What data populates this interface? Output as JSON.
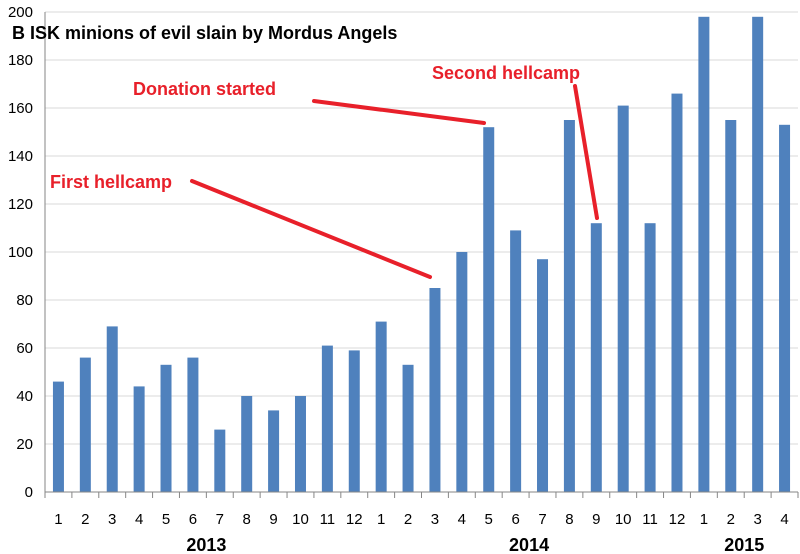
{
  "chart_data": {
    "type": "bar",
    "title": "B ISK minions of evil slain by Mordus Angels",
    "xlabel": "",
    "ylabel": "",
    "ylim": [
      0,
      200
    ],
    "yticks": [
      0,
      20,
      40,
      60,
      80,
      100,
      120,
      140,
      160,
      180,
      200
    ],
    "grid": true,
    "categories": [
      "1",
      "2",
      "3",
      "4",
      "5",
      "6",
      "7",
      "8",
      "9",
      "10",
      "11",
      "12",
      "1",
      "2",
      "3",
      "4",
      "5",
      "6",
      "7",
      "8",
      "9",
      "10",
      "11",
      "12",
      "1",
      "2",
      "3",
      "4"
    ],
    "years": [
      {
        "label": "2013",
        "first_index": 0,
        "last_index": 11
      },
      {
        "label": "2014",
        "first_index": 12,
        "last_index": 23
      },
      {
        "label": "2015",
        "first_index": 24,
        "last_index": 27
      }
    ],
    "values": [
      46,
      56,
      69,
      44,
      53,
      56,
      26,
      40,
      34,
      40,
      61,
      59,
      71,
      53,
      85,
      100,
      152,
      109,
      97,
      155,
      112,
      161,
      112,
      166,
      198,
      155,
      198,
      153
    ],
    "bar_color": "#4f81bd",
    "annotations": [
      {
        "text": "Donation started",
        "target_index": 16,
        "color": "#e8202a"
      },
      {
        "text": "First hellcamp",
        "target_index": 14,
        "color": "#e8202a"
      },
      {
        "text": "Second hellcamp",
        "target_index": 20,
        "color": "#e8202a"
      }
    ]
  }
}
